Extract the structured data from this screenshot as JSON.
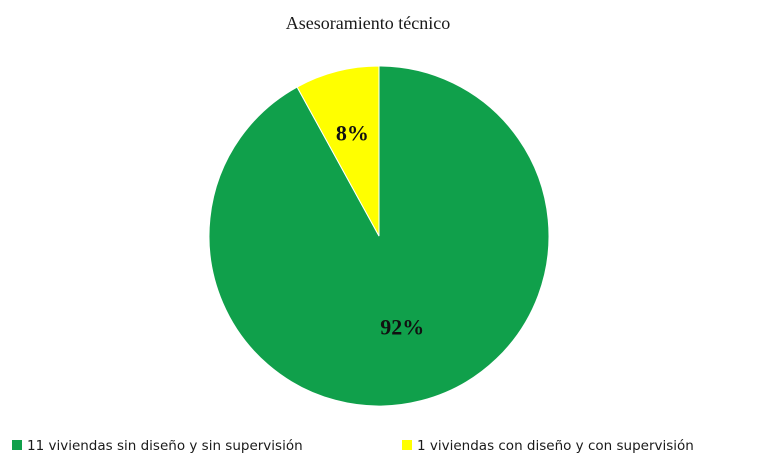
{
  "chart_data": {
    "type": "pie",
    "title": "Asesoramiento técnico",
    "categories": [
      "11 viviendas sin diseño y sin supervisión",
      "1 viviendas con diseño y con supervisión"
    ],
    "values": [
      92,
      8
    ],
    "data_labels": [
      "92%",
      "8%"
    ],
    "colors": [
      "#10a04b",
      "#ffff00"
    ],
    "legend_position": "bottom",
    "start_angle": "12 o'clock",
    "direction": "clockwise"
  }
}
